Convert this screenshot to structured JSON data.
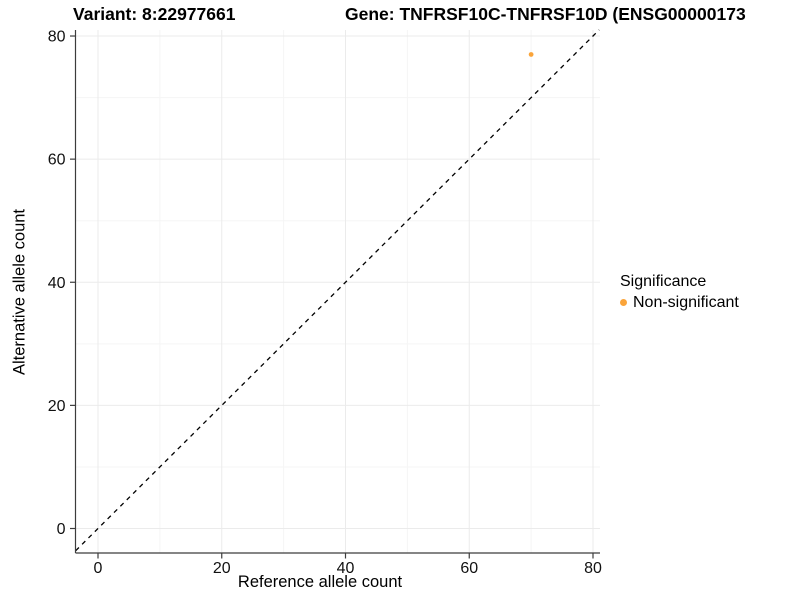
{
  "plot": {
    "title_left": "Variant: 8:22977661",
    "title_right": "Gene: TNFRSF10C-TNFRSF10D (ENSG00000173"
  },
  "chart_data": {
    "type": "scatter",
    "title": "Variant: 8:22977661  /  Gene: TNFRSF10C-TNFRSF10D (ENSG00000173... [clipped])",
    "xlabel": "Reference allele count",
    "ylabel": "Alternative allele count",
    "x_ticks": [
      0,
      20,
      40,
      60,
      80
    ],
    "y_ticks": [
      0,
      20,
      40,
      60,
      80
    ],
    "x_minor_ticks": [
      10,
      30,
      50,
      70
    ],
    "y_minor_ticks": [
      10,
      30,
      50,
      70
    ],
    "xlim": [
      -3.6,
      81.1
    ],
    "ylim": [
      -4,
      81
    ],
    "grid": "major+minor",
    "points": [
      {
        "x": 70,
        "y": 77,
        "series": "Non-significant"
      }
    ],
    "reference_line": {
      "slope": 1,
      "intercept": 0,
      "style": "dashed",
      "color": "#000000"
    },
    "legend": {
      "title": "Significance",
      "position": "right",
      "items": [
        {
          "label": "Non-significant",
          "color": "#FAA43A"
        }
      ]
    },
    "style": {
      "point_color": "#FAA43A",
      "axis_line_color": "#3c3c3c",
      "tick_label_color": "#111111",
      "major_grid_color": "#ebebeb",
      "minor_grid_color": "#f5f5f5",
      "background": "#ffffff"
    }
  }
}
